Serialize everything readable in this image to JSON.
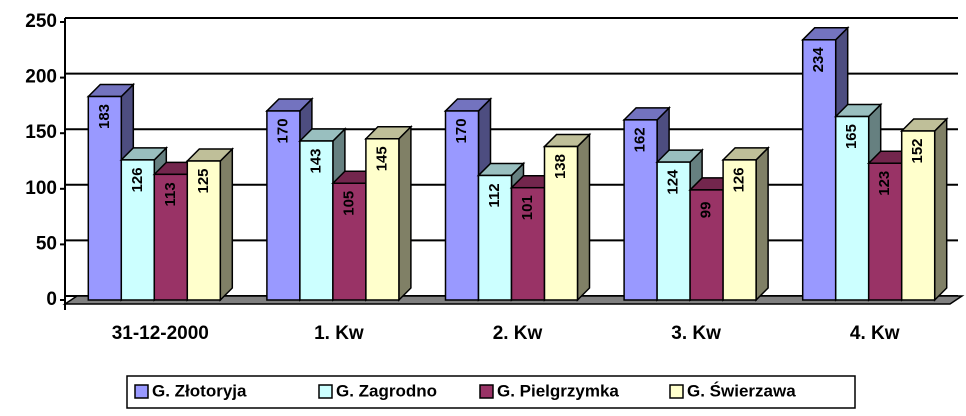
{
  "chart_data": {
    "type": "bar3d",
    "categories": [
      "31-12-2000",
      "1. Kw",
      "2. Kw",
      "3. Kw",
      "4. Kw"
    ],
    "series": [
      {
        "name": "G. Złotoryja",
        "color": "#9999ff",
        "values": [
          183,
          170,
          170,
          162,
          234
        ]
      },
      {
        "name": "G. Zagrodno",
        "color": "#ccffff",
        "values": [
          126,
          143,
          112,
          124,
          165
        ]
      },
      {
        "name": "G. Pielgrzymka",
        "color": "#993366",
        "values": [
          113,
          105,
          101,
          99,
          123
        ]
      },
      {
        "name": "G. Świerzawa",
        "color": "#ffffcc",
        "values": [
          125,
          145,
          138,
          126,
          152
        ]
      }
    ],
    "ylim": [
      0,
      250
    ],
    "yticks": [
      0,
      50,
      100,
      150,
      200,
      250
    ],
    "grid": true,
    "legend": "bottom"
  }
}
